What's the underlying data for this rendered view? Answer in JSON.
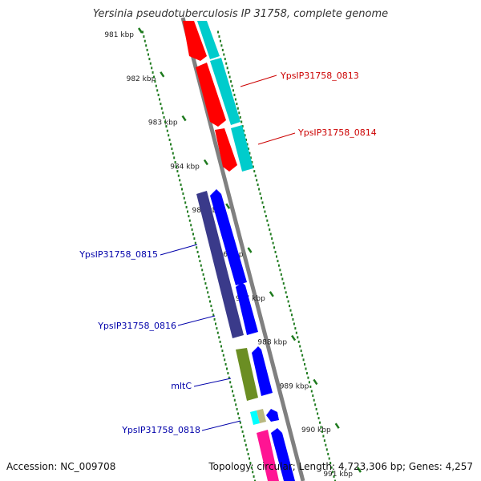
{
  "title": "Yersinia pseudotuberculosis IP 31758, complete genome",
  "footer": {
    "accession": "Accession: NC_009708",
    "summary": "Topology: circular; Length: 4,723,306 bp; Genes: 4,257"
  },
  "colors": {
    "axis": "#808080",
    "ticks": "#1e7a1e",
    "tick_label": "#222222",
    "gene_label_forward": "#cc0000",
    "gene_label_reverse": "#0000aa"
  },
  "ticks": [
    {
      "label": "981 kbp"
    },
    {
      "label": "982 kbp"
    },
    {
      "label": "983 kbp"
    },
    {
      "label": "984 kbp"
    },
    {
      "label": "985 kbp"
    },
    {
      "label": "986 kbp"
    },
    {
      "label": "987 kbp"
    },
    {
      "label": "988 kbp"
    },
    {
      "label": "989 kbp"
    },
    {
      "label": "990 kbp"
    },
    {
      "label": "991 kbp"
    }
  ],
  "gene_labels": [
    {
      "text": "YpsIP31758_0813",
      "strand": "forward"
    },
    {
      "text": "YpsIP31758_0814",
      "strand": "forward"
    },
    {
      "text": "YpsIP31758_0815",
      "strand": "reverse"
    },
    {
      "text": "YpsIP31758_0816",
      "strand": "reverse"
    },
    {
      "text": "mltC",
      "strand": "reverse"
    },
    {
      "text": "YpsIP31758_0818",
      "strand": "reverse"
    }
  ]
}
